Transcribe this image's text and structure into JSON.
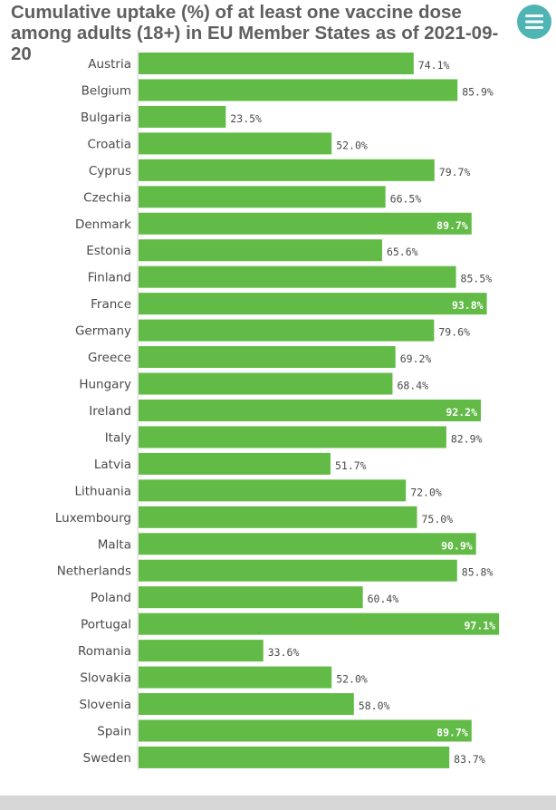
{
  "title": "Cumulative uptake (%) of at least one vaccine dose among adults (18+) in EU Member States as of 2021-09-20",
  "menu_icon": "hamburger-menu-icon",
  "colors": {
    "bar": "#62bb46",
    "title": "#5f5f5f",
    "menu_button": "#4fb4b4",
    "label_outside": "#4a4a4a",
    "label_inside": "#ffffff",
    "footer": "#d7d7d7"
  },
  "chart_data": {
    "type": "bar",
    "orientation": "horizontal",
    "title": "Cumulative uptake (%) of at least one vaccine dose among adults (18+) in EU Member States as of 2021-09-20",
    "xlabel": "",
    "ylabel": "",
    "xlim": [
      0,
      100
    ],
    "grid": false,
    "categories": [
      "Austria",
      "Belgium",
      "Bulgaria",
      "Croatia",
      "Cyprus",
      "Czechia",
      "Denmark",
      "Estonia",
      "Finland",
      "France",
      "Germany",
      "Greece",
      "Hungary",
      "Ireland",
      "Italy",
      "Latvia",
      "Lithuania",
      "Luxembourg",
      "Malta",
      "Netherlands",
      "Poland",
      "Portugal",
      "Romania",
      "Slovakia",
      "Slovenia",
      "Spain",
      "Sweden"
    ],
    "values": [
      74.1,
      85.9,
      23.5,
      52.0,
      79.7,
      66.5,
      89.7,
      65.6,
      85.5,
      93.8,
      79.6,
      69.2,
      68.4,
      92.2,
      82.9,
      51.7,
      72.0,
      75.0,
      90.9,
      85.8,
      60.4,
      97.1,
      33.6,
      52.0,
      58.0,
      89.7,
      83.7
    ],
    "value_labels": [
      "74.1%",
      "85.9%",
      "23.5%",
      "52.0%",
      "79.7%",
      "66.5%",
      "89.7%",
      "65.6%",
      "85.5%",
      "93.8%",
      "79.6%",
      "69.2%",
      "68.4%",
      "92.2%",
      "82.9%",
      "51.7%",
      "72.0%",
      "75.0%",
      "90.9%",
      "85.8%",
      "60.4%",
      "97.1%",
      "33.6%",
      "52.0%",
      "58.0%",
      "89.7%",
      "83.7%"
    ]
  }
}
